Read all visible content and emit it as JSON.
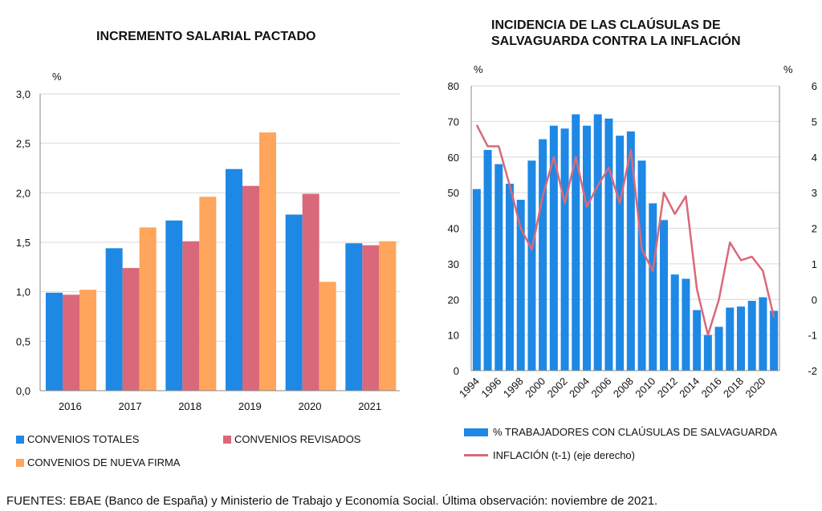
{
  "chart_data": [
    {
      "type": "bar",
      "title": "INCREMENTO SALARIAL PACTADO",
      "ylabel": "%",
      "xlabel": "",
      "ylim": [
        0,
        3.0
      ],
      "yticks": [
        "0,0",
        "0,5",
        "1,0",
        "1,5",
        "2,0",
        "2,5",
        "3,0"
      ],
      "grid": true,
      "categories": [
        "2016",
        "2017",
        "2018",
        "2019",
        "2020",
        "2021"
      ],
      "series": [
        {
          "name": "CONVENIOS TOTALES",
          "color": "#1e88e5",
          "values": [
            0.99,
            1.44,
            1.72,
            2.24,
            1.78,
            1.49
          ]
        },
        {
          "name": "CONVENIOS REVISADOS",
          "color": "#d9697a",
          "values": [
            0.97,
            1.24,
            1.51,
            2.07,
            1.99,
            1.47
          ]
        },
        {
          "name": "CONVENIOS DE NUEVA FIRMA",
          "color": "#ffa55c",
          "values": [
            1.02,
            1.65,
            1.96,
            2.61,
            1.1,
            1.51
          ]
        }
      ],
      "legend": "bottom"
    },
    {
      "type": "bar",
      "title": "INCIDENCIA DE LAS CLAÚSULAS DE SALVAGUARDA CONTRA LA INFLACIÓN",
      "ylabel": "%",
      "ylabel_right": "%",
      "ylim": [
        0,
        80
      ],
      "ylim_right": [
        -2,
        6
      ],
      "yticks": [
        "0",
        "10",
        "20",
        "30",
        "40",
        "50",
        "60",
        "70",
        "80"
      ],
      "yticks_right": [
        "-2",
        "-1",
        "0",
        "1",
        "2",
        "3",
        "4",
        "5",
        "6"
      ],
      "grid": true,
      "x": [
        1994,
        1995,
        1996,
        1997,
        1998,
        1999,
        2000,
        2001,
        2002,
        2003,
        2004,
        2005,
        2006,
        2007,
        2008,
        2009,
        2010,
        2011,
        2012,
        2013,
        2014,
        2015,
        2016,
        2017,
        2018,
        2019,
        2020,
        2021
      ],
      "xtick_labels": [
        "1994",
        "1996",
        "1998",
        "2000",
        "2002",
        "2004",
        "2006",
        "2008",
        "2010",
        "2012",
        "2014",
        "2016",
        "2018",
        "2020"
      ],
      "series": [
        {
          "name": "% TRABAJADORES CON CLAÚSULAS DE SALVAGUARDA",
          "kind": "bar",
          "axis": "left",
          "color": "#1e88e5",
          "values": [
            51,
            62,
            58,
            52.5,
            48,
            59,
            65,
            68.8,
            68,
            72,
            68.8,
            72,
            70.8,
            66,
            67.2,
            59,
            47,
            42.3,
            27,
            25.8,
            17,
            10,
            12.3,
            17.7,
            18,
            19.6,
            20.6,
            16.8
          ]
        },
        {
          "name": "INFLACIÓN (t-1) (eje derecho)",
          "kind": "line",
          "axis": "right",
          "color": "#d9697a",
          "values": [
            4.9,
            4.3,
            4.3,
            3.2,
            2.0,
            1.4,
            2.9,
            4.0,
            2.7,
            4.0,
            2.6,
            3.2,
            3.7,
            2.7,
            4.2,
            1.4,
            0.8,
            3.0,
            2.4,
            2.9,
            0.3,
            -1.0,
            0.0,
            1.6,
            1.1,
            1.2,
            0.8,
            -0.5
          ]
        }
      ],
      "legend": "bottom"
    }
  ],
  "source_text": "FUENTES: EBAE (Banco de España) y Ministerio de Trabajo y Economía Social. Última observación: noviembre de 2021."
}
